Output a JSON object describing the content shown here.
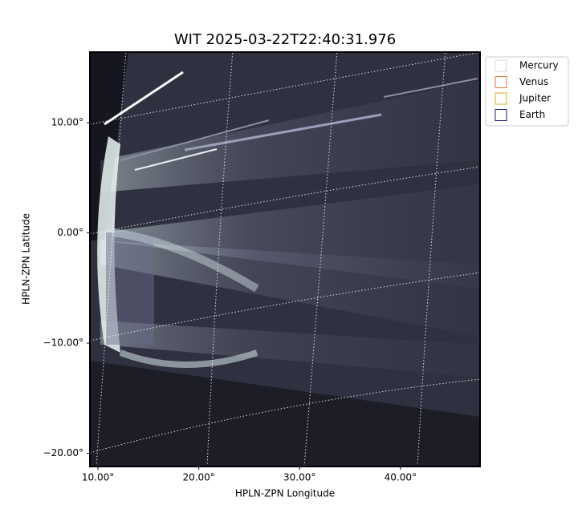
{
  "chart_data": {
    "type": "image",
    "title": "WIT 2025-03-22T22:40:31.976",
    "xlabel": "HPLN-ZPN Longitude",
    "ylabel": "HPLN-ZPN Latitude",
    "xlim": [
      9.2,
      47.9
    ],
    "ylim": [
      -21.2,
      16.4
    ],
    "xticks": [
      {
        "value": 10,
        "label": "10.00°"
      },
      {
        "value": 20,
        "label": "20.00°"
      },
      {
        "value": 30,
        "label": "30.00°"
      },
      {
        "value": 40,
        "label": "40.00°"
      }
    ],
    "yticks": [
      {
        "value": 10,
        "label": "10.00°"
      },
      {
        "value": 0,
        "label": "0.00°"
      },
      {
        "value": -10,
        "label": "−10.00°"
      },
      {
        "value": -20,
        "label": "−20.00°"
      }
    ],
    "grid": true,
    "legend_position": "upper-right",
    "legend": [
      {
        "name": "Mercury",
        "color": "#d8d8d8"
      },
      {
        "name": "Venus",
        "color": "#e07a38"
      },
      {
        "name": "Jupiter",
        "color": "#e0a820"
      },
      {
        "name": "Earth",
        "color": "#1a1a80"
      }
    ]
  }
}
